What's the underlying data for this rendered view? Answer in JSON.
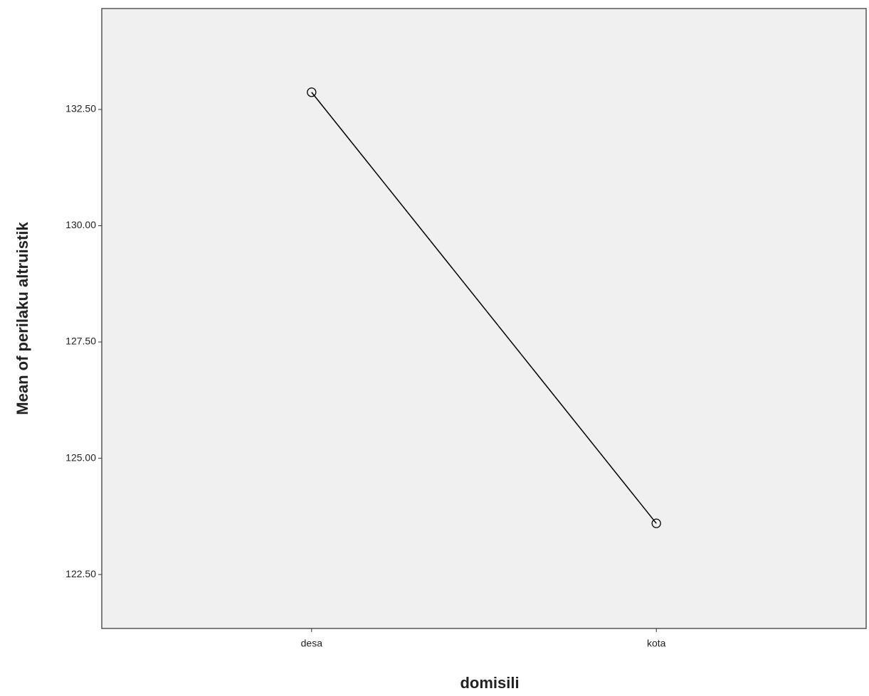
{
  "chart_data": {
    "type": "line",
    "x_label": "domisili",
    "y_label": "Mean of perilaku altruistik",
    "categories": [
      "desa",
      "kota"
    ],
    "series": [
      {
        "name": "perilaku altruistik",
        "color": "#000000",
        "values": [
          132.87,
          123.6
        ]
      }
    ],
    "ylim": [
      121.34,
      134.67
    ],
    "yticks": [
      {
        "value": 122.5,
        "label": "122.50"
      },
      {
        "value": 125,
        "label": "125.00"
      },
      {
        "value": 127.5,
        "label": "127.50"
      },
      {
        "value": 130,
        "label": "130.00"
      },
      {
        "value": 132.5,
        "label": "132.50"
      }
    ],
    "grid": false,
    "legend": false
  }
}
